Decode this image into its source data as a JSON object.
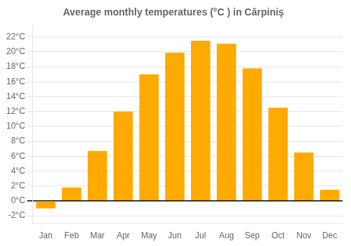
{
  "chart_data": {
    "type": "bar",
    "title": "Average monthly temperatures (°C ) in Cărpiniş",
    "categories": [
      "Jan",
      "Feb",
      "Mar",
      "Apr",
      "May",
      "Jun",
      "Jul",
      "Aug",
      "Sep",
      "Oct",
      "Nov",
      "Dec"
    ],
    "values": [
      -1.0,
      1.8,
      6.7,
      12.0,
      17.0,
      19.9,
      21.5,
      21.1,
      17.8,
      12.5,
      6.5,
      1.5
    ],
    "color": "#FFAA00",
    "ylim": [
      -3.0,
      23.5
    ],
    "yticks": [
      {
        "value": -2,
        "label": "-2°C"
      },
      {
        "value": 0,
        "label": "0°C"
      },
      {
        "value": 2,
        "label": "2°C"
      },
      {
        "value": 4,
        "label": "4°C"
      },
      {
        "value": 6,
        "label": "6°C"
      },
      {
        "value": 8,
        "label": "8°C"
      },
      {
        "value": 10,
        "label": "10°C"
      },
      {
        "value": 12,
        "label": "12°C"
      },
      {
        "value": 14,
        "label": "14°C"
      },
      {
        "value": 16,
        "label": "16°C"
      },
      {
        "value": 18,
        "label": "18°C"
      },
      {
        "value": 20,
        "label": "20°C"
      },
      {
        "value": 22,
        "label": "22°C"
      }
    ],
    "grid": true
  }
}
